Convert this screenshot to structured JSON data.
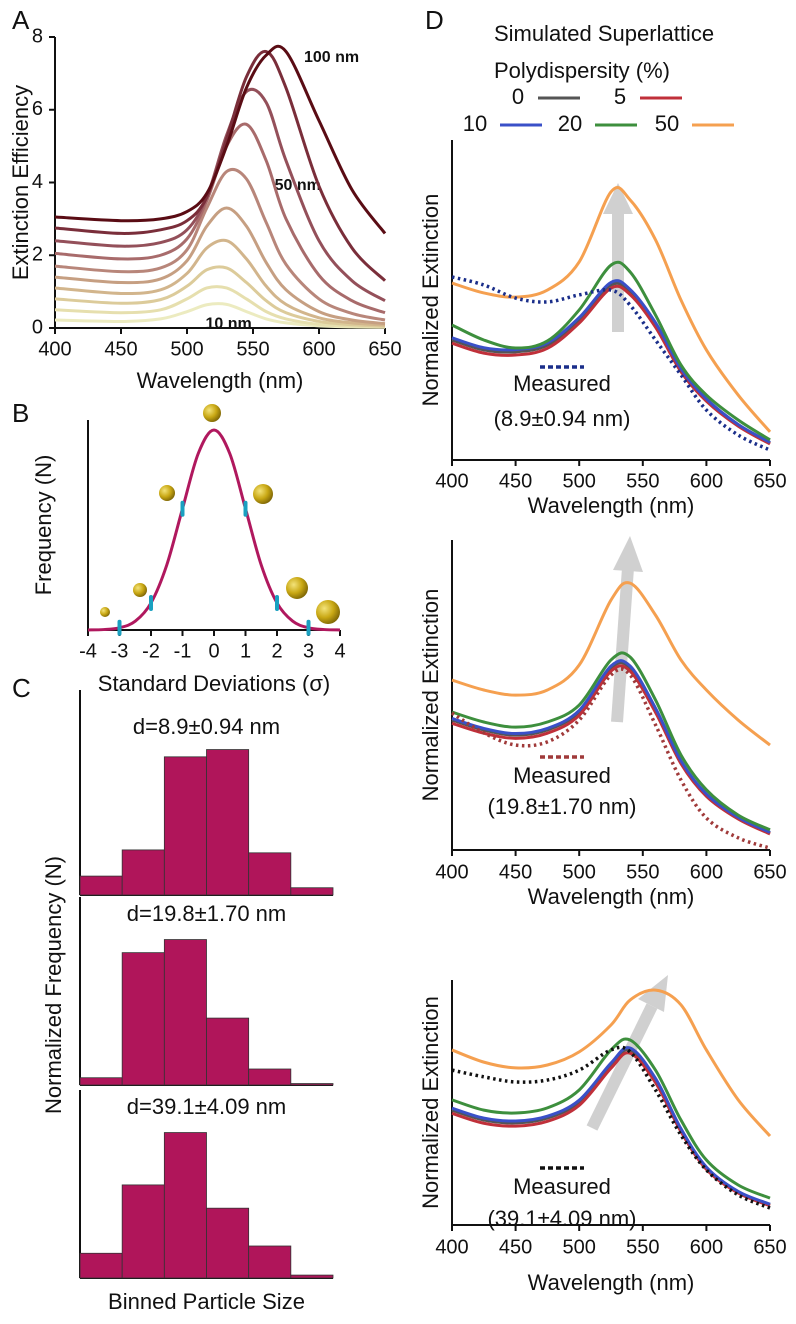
{
  "chart_data": [
    {
      "type": "line",
      "panel": "A",
      "xlabel": "Wavelength (nm)",
      "ylabel": "Extinction Efficiency",
      "x": [
        400,
        450,
        480,
        500,
        515,
        530,
        545,
        560,
        575,
        600,
        625,
        650
      ],
      "xlim": [
        400,
        650
      ],
      "xticks": [
        400,
        450,
        500,
        550,
        600,
        650
      ],
      "ylim": [
        0,
        8
      ],
      "yticks": [
        0,
        2,
        4,
        6,
        8
      ],
      "series": [
        {
          "label": "10 nm",
          "color": "#ecebc0",
          "values": [
            0.22,
            0.18,
            0.25,
            0.45,
            0.64,
            0.65,
            0.45,
            0.25,
            0.14,
            0.06,
            0.03,
            0.02
          ]
        },
        {
          "color": "#e6dfae",
          "values": [
            0.5,
            0.42,
            0.5,
            0.8,
            1.1,
            1.1,
            0.8,
            0.45,
            0.25,
            0.1,
            0.05,
            0.03
          ]
        },
        {
          "color": "#dccb9a",
          "values": [
            0.8,
            0.68,
            0.78,
            1.15,
            1.6,
            1.65,
            1.25,
            0.75,
            0.42,
            0.18,
            0.09,
            0.05
          ]
        },
        {
          "color": "#d2b58c",
          "values": [
            1.1,
            0.95,
            1.05,
            1.5,
            2.2,
            2.4,
            1.9,
            1.15,
            0.65,
            0.28,
            0.14,
            0.08
          ]
        },
        {
          "color": "#c69f82",
          "values": [
            1.4,
            1.25,
            1.35,
            1.85,
            2.8,
            3.3,
            2.8,
            1.8,
            1.05,
            0.45,
            0.22,
            0.12
          ]
        },
        {
          "label": "50 nm",
          "color": "#b8867a",
          "values": [
            1.7,
            1.55,
            1.65,
            2.15,
            3.3,
            4.3,
            4.1,
            2.9,
            1.75,
            0.8,
            0.4,
            0.22
          ]
        },
        {
          "color": "#a86b6b",
          "values": [
            2.05,
            1.9,
            2.0,
            2.45,
            3.5,
            5.0,
            5.6,
            4.6,
            3.0,
            1.45,
            0.75,
            0.42
          ]
        },
        {
          "color": "#94505a",
          "values": [
            2.4,
            2.25,
            2.35,
            2.7,
            3.6,
            5.3,
            6.5,
            6.2,
            4.6,
            2.4,
            1.3,
            0.75
          ]
        },
        {
          "color": "#7a2e3a",
          "values": [
            2.75,
            2.6,
            2.7,
            2.95,
            3.6,
            5.2,
            6.9,
            7.6,
            6.6,
            3.9,
            2.2,
            1.3
          ]
        },
        {
          "label": "100 nm",
          "color": "#5a0c14",
          "values": [
            3.05,
            2.95,
            3.0,
            3.2,
            3.7,
            5.0,
            6.6,
            7.5,
            7.6,
            5.7,
            3.8,
            2.6
          ]
        }
      ]
    },
    {
      "type": "line",
      "panel": "B",
      "xlabel": "Standard Deviations (σ)",
      "ylabel": "Frequency (N)",
      "x": [
        -4,
        -3.5,
        -3,
        -2.5,
        -2,
        -1.5,
        -1,
        -0.5,
        0,
        0.5,
        1,
        1.5,
        2,
        2.5,
        3,
        3.5,
        4
      ],
      "xlim": [
        -4,
        4
      ],
      "xticks": [
        -4,
        -3,
        -2,
        -1,
        0,
        1,
        2,
        3,
        4
      ],
      "ylim": [
        0,
        1.05
      ],
      "series": [
        {
          "color": "#b0185e",
          "values": [
            0.0003,
            0.0022,
            0.0111,
            0.0439,
            0.1353,
            0.3247,
            0.6065,
            0.8825,
            1,
            0.8825,
            0.6065,
            0.3247,
            0.1353,
            0.0439,
            0.0111,
            0.0022,
            0.0003
          ]
        }
      ],
      "markers": [
        -3,
        -2,
        -1,
        1,
        2,
        3
      ],
      "marker_color": "#1aa0c0"
    },
    {
      "type": "bar",
      "panel": "C",
      "title": "d=8.9±0.94 nm",
      "ylabel": "Normalized Frequency (N)",
      "categories": [
        null,
        null,
        null,
        null,
        null,
        null
      ],
      "values": [
        0.13,
        0.31,
        0.95,
        1.0,
        0.29,
        0.05
      ],
      "color": "#b0155a",
      "ylim": [
        0,
        1.1
      ]
    },
    {
      "type": "bar",
      "title": "d=19.8±1.70 nm",
      "categories": [
        null,
        null,
        null,
        null,
        null,
        null
      ],
      "values": [
        0.05,
        0.91,
        1.0,
        0.46,
        0.11,
        0.01
      ],
      "color": "#b0155a",
      "ylim": [
        0,
        1.1
      ]
    },
    {
      "type": "bar",
      "title": "d=39.1±4.09 nm",
      "xlabel": "Binned Particle Size",
      "categories": [
        null,
        null,
        null,
        null,
        null,
        null
      ],
      "values": [
        0.17,
        0.64,
        1.0,
        0.48,
        0.22,
        0.02
      ],
      "color": "#b0155a",
      "ylim": [
        0,
        1.1
      ]
    },
    {
      "type": "line",
      "panel": "D",
      "legend_title": [
        "Simulated Superlattice",
        "Polydispersity (%)"
      ],
      "xlabel": "Wavelength (nm)",
      "ylabel": "Normalized Extinction",
      "x": [
        400,
        425,
        450,
        475,
        500,
        525,
        540,
        560,
        580,
        600,
        625,
        650
      ],
      "xlim": [
        400,
        650
      ],
      "xticks": [
        400,
        450,
        500,
        550,
        600,
        650
      ],
      "ylim": [
        0,
        1
      ],
      "series": [
        {
          "name": "0",
          "color": "#555555",
          "values": [
            0.375,
            0.344,
            0.338,
            0.359,
            0.438,
            0.547,
            0.525,
            0.422,
            0.281,
            0.188,
            0.109,
            0.053
          ]
        },
        {
          "name": "5",
          "color": "#c0303a",
          "values": [
            0.365,
            0.334,
            0.328,
            0.349,
            0.428,
            0.537,
            0.517,
            0.415,
            0.276,
            0.184,
            0.106,
            0.05
          ]
        },
        {
          "name": "10",
          "color": "#3a50c8",
          "values": [
            0.382,
            0.351,
            0.345,
            0.366,
            0.445,
            0.555,
            0.533,
            0.429,
            0.286,
            0.191,
            0.111,
            0.055
          ]
        },
        {
          "name": "20",
          "color": "#3d8f3d",
          "values": [
            0.422,
            0.375,
            0.35,
            0.372,
            0.469,
            0.609,
            0.588,
            0.453,
            0.297,
            0.203,
            0.125,
            0.063
          ]
        },
        {
          "name": "50",
          "color": "#f5a050",
          "values": [
            0.553,
            0.522,
            0.509,
            0.531,
            0.619,
            0.838,
            0.813,
            0.688,
            0.5,
            0.344,
            0.203,
            0.088
          ]
        },
        {
          "name": "Measured",
          "detail": "(8.9±0.94 nm)",
          "color": "#1a2e8a",
          "dash": "dotted",
          "values": [
            0.572,
            0.547,
            0.506,
            0.494,
            0.516,
            0.531,
            0.484,
            0.375,
            0.266,
            0.156,
            0.078,
            0.031
          ]
        }
      ]
    },
    {
      "type": "line",
      "xlabel": "Wavelength (nm)",
      "ylabel": "Normalized Extinction",
      "x": [
        400,
        425,
        450,
        475,
        500,
        525,
        540,
        560,
        580,
        600,
        625,
        650
      ],
      "xlim": [
        400,
        650
      ],
      "xticks": [
        400,
        450,
        500,
        550,
        600,
        650
      ],
      "ylim": [
        0,
        1
      ],
      "series": [
        {
          "color": "#555555",
          "values": [
            0.406,
            0.375,
            0.359,
            0.375,
            0.431,
            0.569,
            0.569,
            0.438,
            0.275,
            0.172,
            0.1,
            0.053
          ]
        },
        {
          "color": "#c0303a",
          "values": [
            0.396,
            0.365,
            0.349,
            0.365,
            0.421,
            0.559,
            0.559,
            0.43,
            0.27,
            0.168,
            0.097,
            0.05
          ]
        },
        {
          "color": "#3a50c8",
          "values": [
            0.411,
            0.38,
            0.364,
            0.38,
            0.436,
            0.575,
            0.575,
            0.443,
            0.279,
            0.175,
            0.102,
            0.055
          ]
        },
        {
          "color": "#3d8f3d",
          "values": [
            0.431,
            0.4,
            0.384,
            0.4,
            0.453,
            0.594,
            0.603,
            0.469,
            0.297,
            0.188,
            0.109,
            0.063
          ]
        },
        {
          "color": "#f5a050",
          "values": [
            0.531,
            0.5,
            0.484,
            0.5,
            0.578,
            0.781,
            0.834,
            0.734,
            0.594,
            0.5,
            0.406,
            0.328
          ]
        },
        {
          "name": "Measured",
          "detail": "(19.8±1.70 nm)",
          "color": "#a03a3a",
          "dash": "dotted",
          "values": [
            0.428,
            0.366,
            0.328,
            0.338,
            0.406,
            0.547,
            0.547,
            0.391,
            0.219,
            0.1,
            0.038,
            0.006
          ]
        }
      ]
    },
    {
      "type": "line",
      "xlabel": "Wavelength (nm)",
      "ylabel": "Normalized Extinction",
      "x": [
        400,
        425,
        450,
        475,
        500,
        525,
        540,
        560,
        580,
        600,
        625,
        650
      ],
      "xlim": [
        400,
        650
      ],
      "xticks": [
        400,
        450,
        500,
        550,
        600,
        650
      ],
      "ylim": [
        0,
        1
      ],
      "series": [
        {
          "color": "#555555",
          "values": [
            0.359,
            0.328,
            0.319,
            0.334,
            0.384,
            0.5,
            0.547,
            0.453,
            0.297,
            0.178,
            0.103,
            0.063
          ]
        },
        {
          "color": "#c0303a",
          "values": [
            0.349,
            0.318,
            0.309,
            0.324,
            0.374,
            0.49,
            0.537,
            0.445,
            0.292,
            0.174,
            0.1,
            0.06
          ]
        },
        {
          "color": "#3a50c8",
          "values": [
            0.365,
            0.334,
            0.325,
            0.34,
            0.39,
            0.506,
            0.553,
            0.458,
            0.301,
            0.181,
            0.105,
            0.065
          ]
        },
        {
          "color": "#3d8f3d",
          "values": [
            0.391,
            0.359,
            0.35,
            0.366,
            0.422,
            0.547,
            0.578,
            0.484,
            0.328,
            0.203,
            0.125,
            0.084
          ]
        },
        {
          "color": "#f5a050",
          "values": [
            0.547,
            0.509,
            0.491,
            0.5,
            0.541,
            0.625,
            0.703,
            0.734,
            0.688,
            0.547,
            0.391,
            0.278
          ]
        },
        {
          "name": "Measured",
          "detail": "(39.1±4.09 nm)",
          "color": "#111111",
          "dash": "dotted",
          "values": [
            0.484,
            0.463,
            0.447,
            0.453,
            0.484,
            0.547,
            0.541,
            0.422,
            0.281,
            0.172,
            0.094,
            0.053
          ]
        }
      ]
    }
  ]
}
